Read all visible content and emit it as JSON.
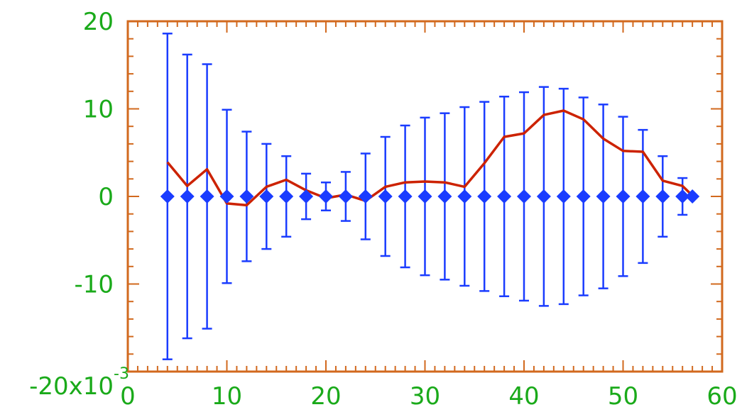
{
  "chart_data": {
    "type": "scatter",
    "xlim": [
      0,
      60
    ],
    "ylim": [
      -0.02,
      0.02
    ],
    "x_ticks": [
      "0",
      "10",
      "20",
      "30",
      "40",
      "50",
      "60"
    ],
    "y_ticks": [
      "20",
      "10",
      "0",
      "-10",
      "-20x10"
    ],
    "y_exponent": "-3",
    "grid": false,
    "colors": {
      "axes": "#d2691e",
      "tick_labels": "#1aaa1a",
      "points": "#1a3cff",
      "line": "#cc2200"
    },
    "series": [
      {
        "type": "scatter-errorbar",
        "x": [
          4,
          6,
          8,
          10,
          12,
          14,
          16,
          18,
          20,
          22,
          24,
          26,
          28,
          30,
          32,
          34,
          36,
          38,
          40,
          42,
          44,
          46,
          48,
          50,
          52,
          54,
          56,
          57
        ],
        "y": [
          0,
          0,
          0,
          0,
          0,
          0,
          0,
          0,
          0,
          0,
          0,
          0,
          0,
          0,
          0,
          0,
          0,
          0,
          0,
          0,
          0,
          0,
          0,
          0,
          0,
          0,
          0,
          0
        ],
        "yerr": [
          0.0186,
          0.0162,
          0.0151,
          0.0099,
          0.0074,
          0.006,
          0.0046,
          0.0026,
          0.0016,
          0.0028,
          0.0049,
          0.0068,
          0.0081,
          0.009,
          0.0095,
          0.0102,
          0.0108,
          0.0114,
          0.0119,
          0.0125,
          0.0123,
          0.0113,
          0.0105,
          0.0091,
          0.0076,
          0.0046,
          0.0021,
          null
        ]
      },
      {
        "type": "line",
        "x": [
          4,
          6,
          8,
          10,
          12,
          14,
          16,
          18,
          20,
          22,
          24,
          26,
          28,
          30,
          32,
          34,
          36,
          38,
          40,
          42,
          44,
          46,
          48,
          50,
          52,
          54,
          56,
          57
        ],
        "y": [
          0.0039,
          0.0012,
          0.0031,
          -0.0008,
          -0.001,
          0.0011,
          0.0019,
          0.0007,
          -0.0002,
          0.0002,
          -0.0005,
          0.0011,
          0.0016,
          0.0017,
          0.0016,
          0.0011,
          0.0038,
          0.0068,
          0.0072,
          0.0093,
          0.0098,
          0.0088,
          0.0066,
          0.0052,
          0.0051,
          0.0018,
          0.0012,
          0.0001
        ]
      }
    ]
  }
}
